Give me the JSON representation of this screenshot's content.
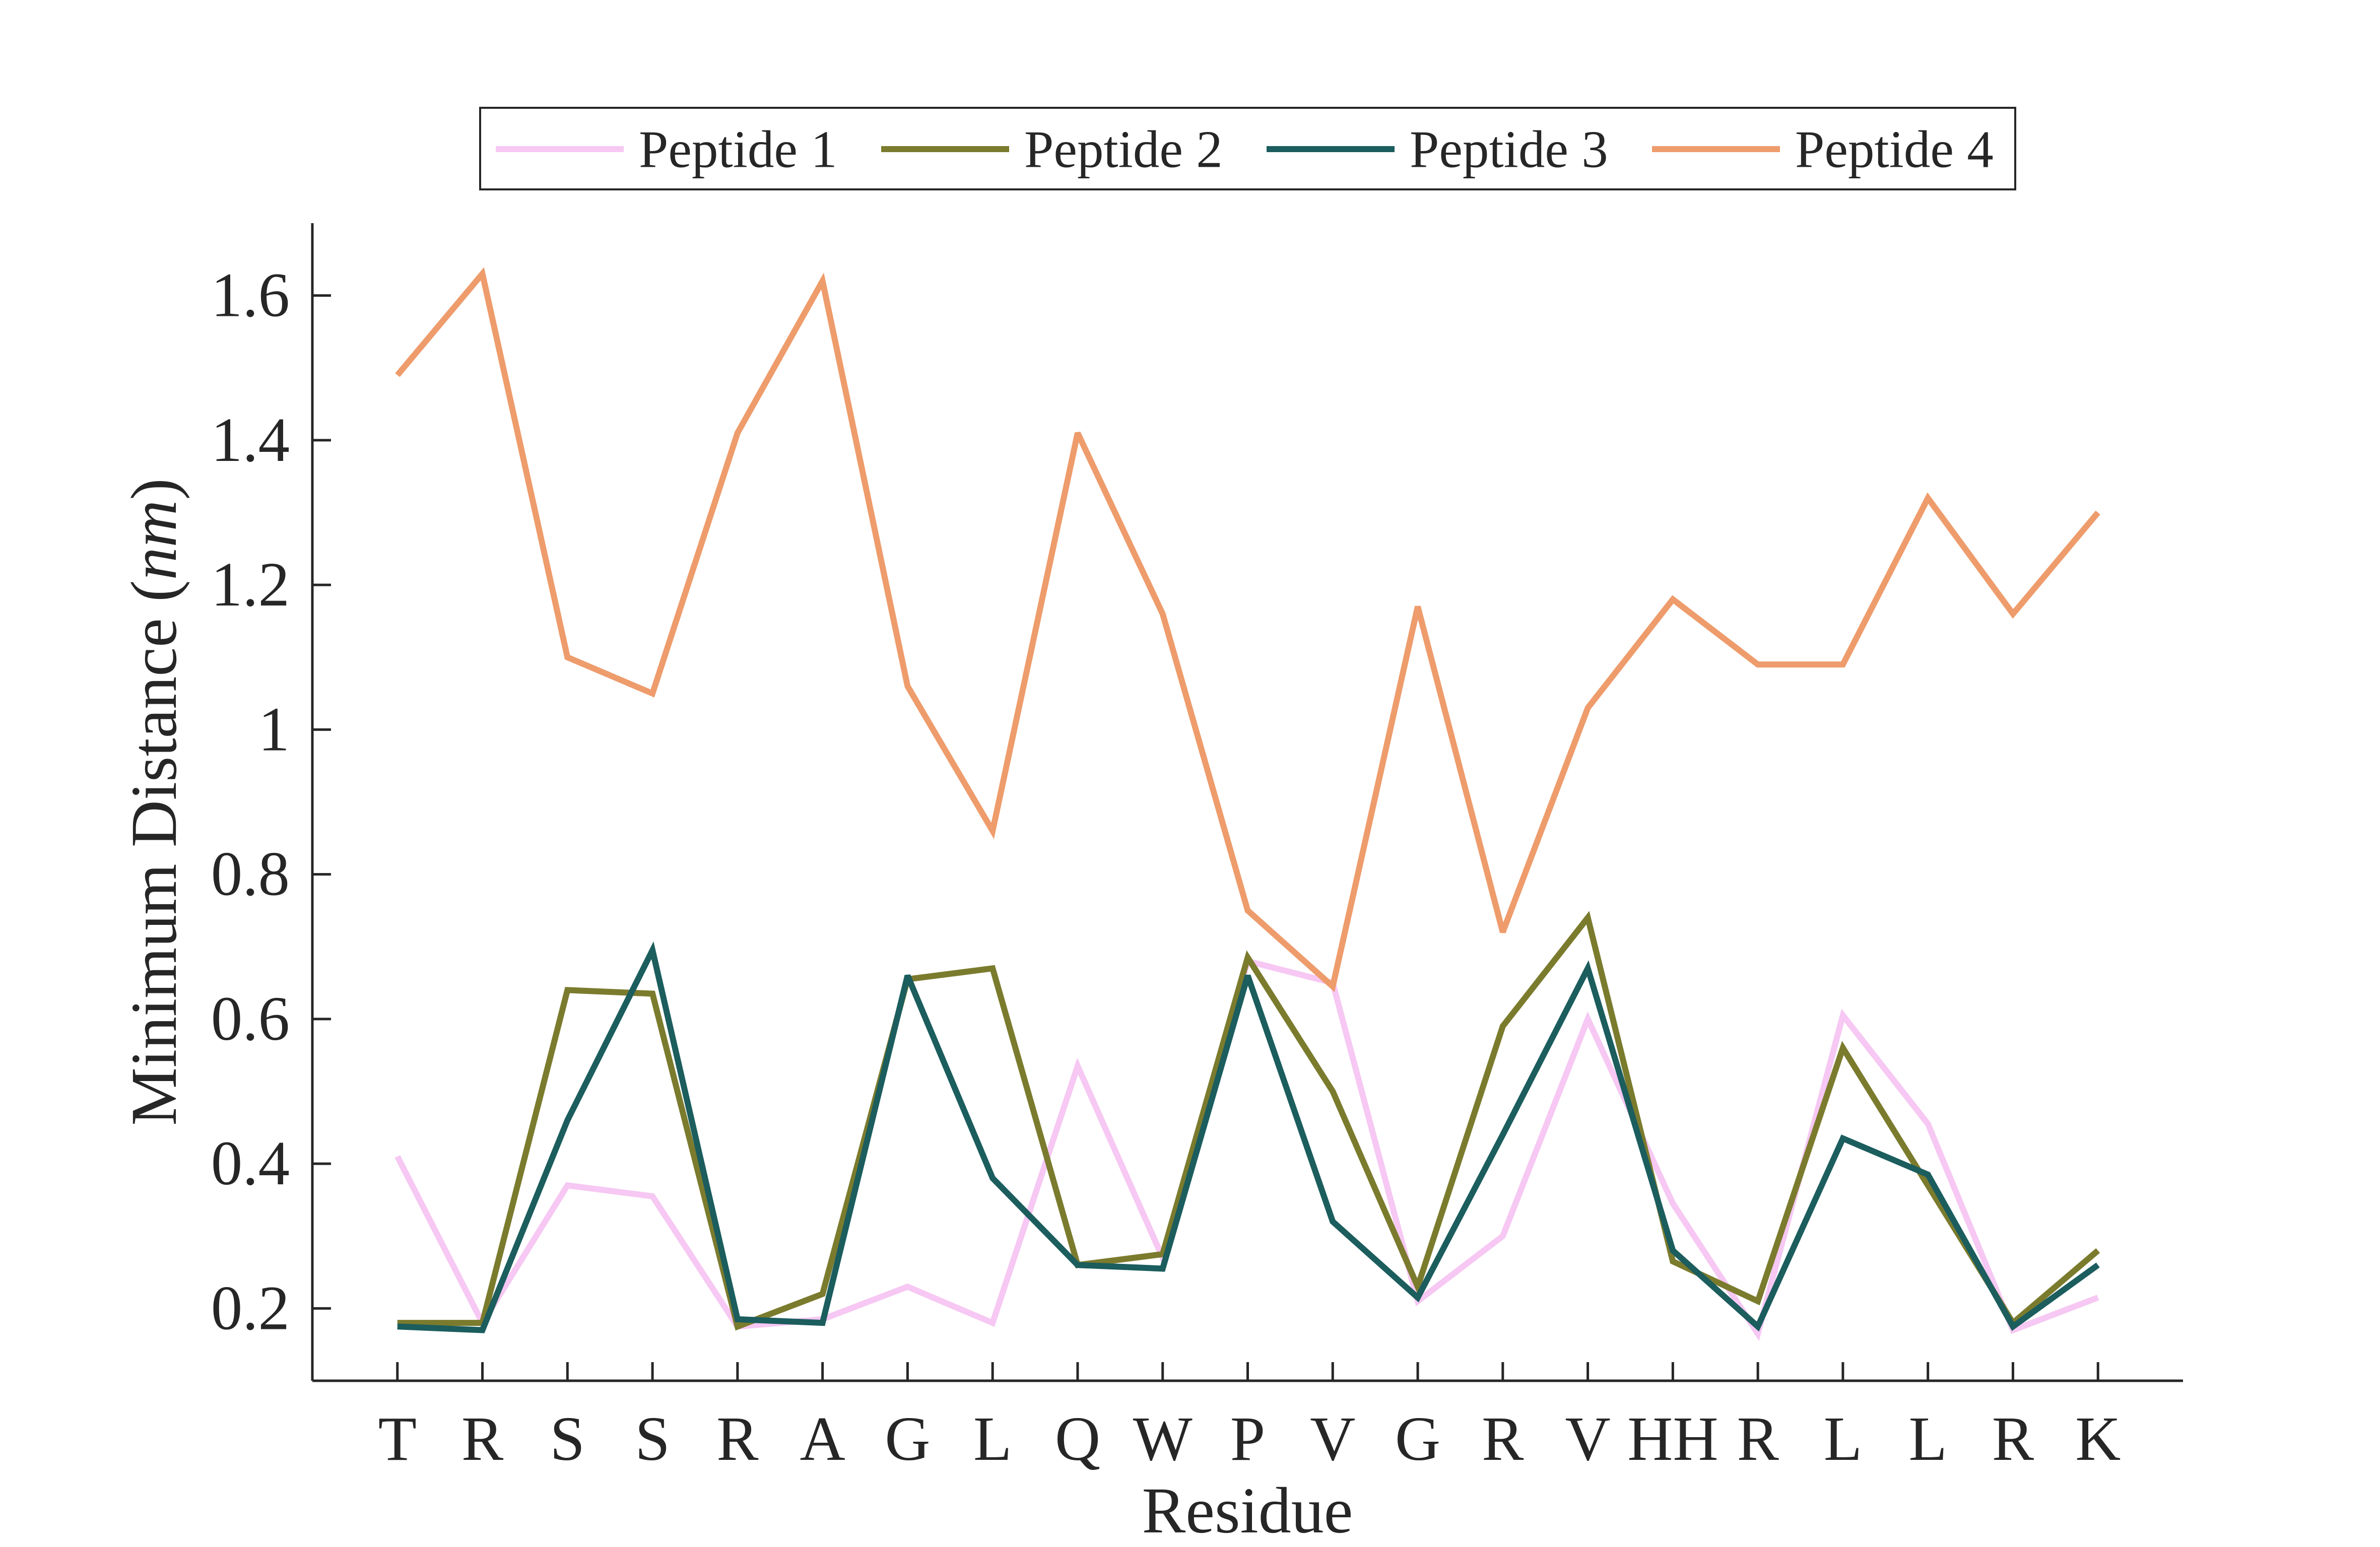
{
  "chart_data": {
    "type": "line",
    "title": "",
    "xlabel": "Residue",
    "ylabel": "Minimum Distance (nm)",
    "categories": [
      "T",
      "R",
      "S",
      "S",
      "R",
      "A",
      "G",
      "L",
      "Q",
      "W",
      "P",
      "V",
      "G",
      "R",
      "V",
      "HH",
      "R",
      "L",
      "L",
      "R",
      "K"
    ],
    "xlim": [
      0,
      22
    ],
    "ylim": [
      0.1,
      1.7
    ],
    "yticks": [
      0.2,
      0.4,
      0.6,
      0.8,
      1.0,
      1.2,
      1.4,
      1.6
    ],
    "ytick_labels": [
      "0.2",
      "0.4",
      "0.6",
      "0.8",
      "1",
      "1.2",
      "1.4",
      "1.6"
    ],
    "grid": false,
    "legend": {
      "location": "top-center",
      "orientation": "horizontal"
    },
    "series": [
      {
        "name": "Peptide 1",
        "color": "#F6C8F3",
        "values": [
          0.41,
          0.18,
          0.37,
          0.355,
          0.175,
          0.185,
          0.23,
          0.18,
          0.535,
          0.27,
          0.68,
          0.65,
          0.21,
          0.3,
          0.6,
          0.345,
          0.165,
          0.605,
          0.455,
          0.17,
          0.215
        ]
      },
      {
        "name": "Peptide 2",
        "color": "#7B7B2E",
        "values": [
          0.18,
          0.18,
          0.64,
          0.635,
          0.175,
          0.22,
          0.655,
          0.67,
          0.26,
          0.275,
          0.685,
          0.5,
          0.23,
          0.59,
          0.74,
          0.265,
          0.21,
          0.56,
          0.37,
          0.18,
          0.28
        ]
      },
      {
        "name": "Peptide 3",
        "color": "#1C5D5E",
        "values": [
          0.175,
          0.17,
          0.46,
          0.695,
          0.185,
          0.18,
          0.66,
          0.38,
          0.26,
          0.255,
          0.66,
          0.32,
          0.215,
          0.44,
          0.67,
          0.28,
          0.175,
          0.435,
          0.385,
          0.175,
          0.26
        ]
      },
      {
        "name": "Peptide 4",
        "color": "#EE9C6C",
        "values": [
          1.49,
          1.63,
          1.1,
          1.05,
          1.41,
          1.62,
          1.06,
          0.86,
          1.41,
          1.16,
          0.75,
          0.645,
          1.17,
          0.72,
          1.03,
          1.18,
          1.09,
          1.09,
          1.32,
          1.16,
          1.3
        ]
      }
    ]
  }
}
